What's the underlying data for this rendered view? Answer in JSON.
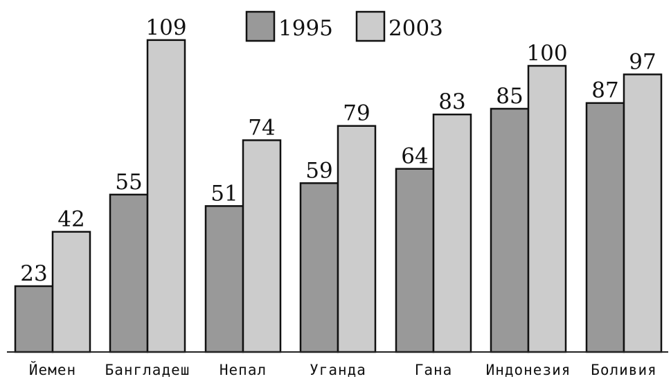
{
  "chart_data": {
    "type": "bar",
    "categories": [
      "Йемен",
      "Бангладеш",
      "Непал",
      "Уганда",
      "Гана",
      "Индонезия",
      "Боливия"
    ],
    "series": [
      {
        "name": "1995",
        "values": [
          23,
          55,
          51,
          59,
          64,
          85,
          87
        ],
        "color": "#999999"
      },
      {
        "name": "2003",
        "values": [
          42,
          109,
          74,
          79,
          83,
          100,
          97
        ],
        "color": "#cccccc"
      }
    ],
    "title": "",
    "xlabel": "",
    "ylabel": "",
    "ylim": [
      0,
      120
    ],
    "grid": false,
    "legend": "top-center",
    "value_labels": true
  }
}
